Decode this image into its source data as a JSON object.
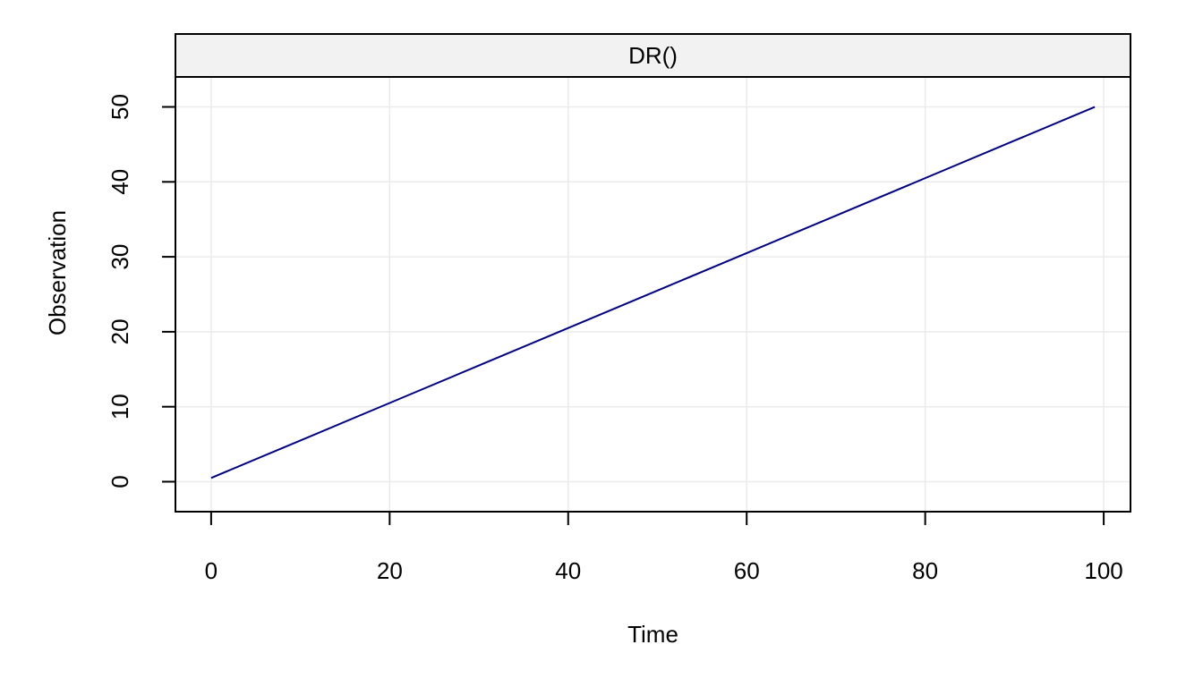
{
  "chart_data": {
    "type": "line",
    "strip_title": "DR()",
    "xlabel": "Time",
    "ylabel": "Observation",
    "x_ticks": [
      "0",
      "20",
      "40",
      "60",
      "80",
      "100"
    ],
    "y_ticks": [
      "0",
      "10",
      "20",
      "30",
      "40",
      "50"
    ],
    "xlim": [
      -4,
      103
    ],
    "ylim": [
      -4,
      54
    ],
    "grid": true,
    "series": [
      {
        "color": "#000080",
        "x": [
          0,
          10,
          20,
          30,
          40,
          50,
          60,
          70,
          80,
          90,
          99
        ],
        "y": [
          0.5,
          5.5,
          10.5,
          15.5,
          20.5,
          25.5,
          30.5,
          35.5,
          40.5,
          45.5,
          50
        ]
      }
    ]
  },
  "colors": {
    "strip_fill": "#f2f2f2",
    "grid": "#ebebeb",
    "line": "#000080"
  }
}
